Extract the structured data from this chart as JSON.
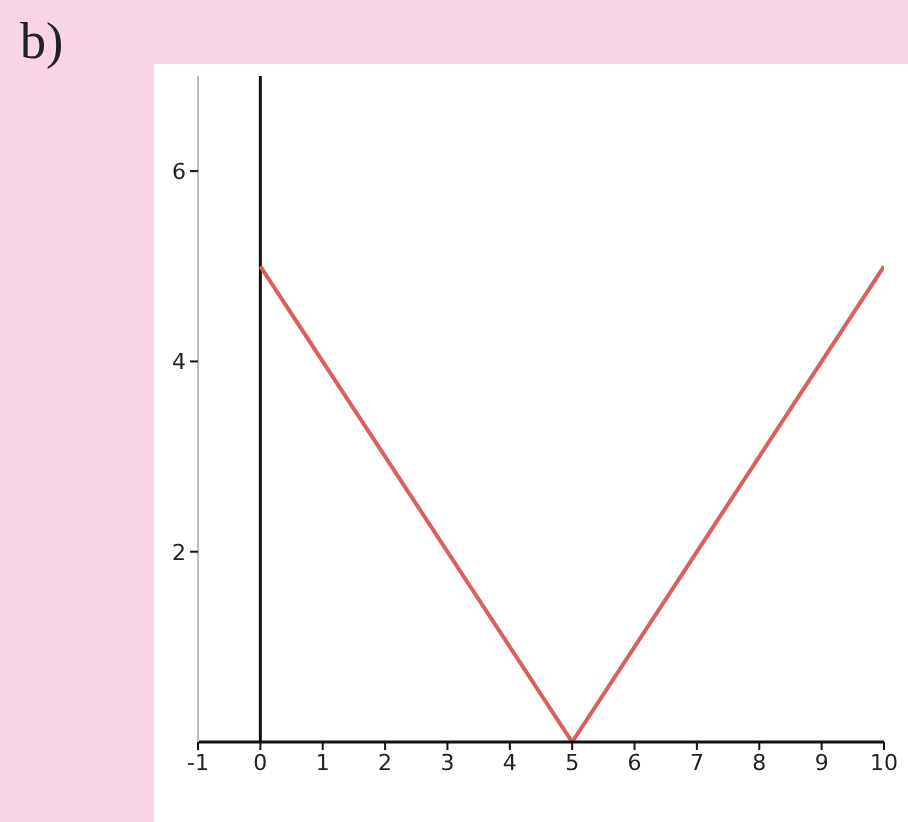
{
  "chart_data": {
    "type": "line",
    "title": "b)",
    "x": [
      0,
      5,
      10
    ],
    "series": [
      {
        "color": "#d9605c",
        "values": [
          5,
          0,
          5
        ]
      }
    ],
    "xlim": [
      -1,
      10
    ],
    "ylim": [
      0,
      7
    ],
    "xticks": [
      -1,
      0,
      1,
      2,
      3,
      4,
      5,
      6,
      7,
      8,
      9,
      10
    ],
    "yticks": [
      2,
      4,
      6
    ],
    "ref_lines": [
      {
        "axis": "x",
        "value": 0,
        "color": "#111111"
      }
    ],
    "grid": false,
    "legend": false,
    "marker": "none",
    "line_style": "solid"
  }
}
